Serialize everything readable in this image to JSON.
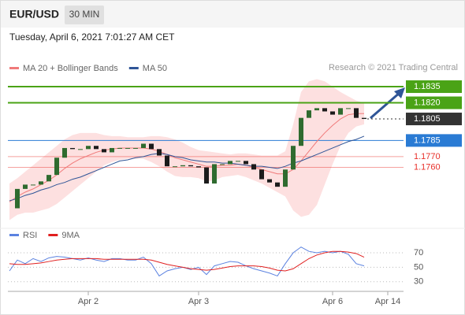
{
  "header": {
    "symbol": "EUR/USD",
    "interval": "30 MIN",
    "timestamp": "Tuesday, April 6, 2021 7:01:27 AM CET",
    "source": "Research © 2021 Trading Central"
  },
  "chart_data": [
    {
      "type": "candlestick",
      "ylim": [
        1.1707,
        1.1846
      ],
      "price": {
        "up_color": "#2f6b2f",
        "down_color": "#1b1b1b",
        "values": [
          1.1722,
          1.174,
          1.1744,
          1.1744,
          1.1747,
          1.1753,
          1.1769,
          1.1778,
          1.1777,
          1.1777,
          1.178,
          1.1777,
          1.1774,
          1.1778,
          1.1778,
          1.1778,
          1.1778,
          1.1782,
          1.1777,
          1.1771,
          1.1761,
          1.1761,
          1.1762,
          1.1761,
          1.176,
          1.1745,
          1.1763,
          1.1763,
          1.1766,
          1.1766,
          1.1763,
          1.1758,
          1.1749,
          1.1746,
          1.1742,
          1.1758,
          1.178,
          1.1806,
          1.1813,
          1.1815,
          1.1812,
          1.1809,
          1.1815,
          1.1815,
          1.1806,
          1.1805,
          null,
          null,
          null,
          null
        ]
      },
      "series": [
        {
          "name": "MA 20 + Bollinger Bands",
          "color": "#f07a7a",
          "band_color": "#fde0e0",
          "values": [
            1.1728,
            1.1733,
            1.1737,
            1.174,
            1.1744,
            1.1748,
            1.1753,
            1.1759,
            1.1764,
            1.1768,
            1.1771,
            1.1774,
            1.1776,
            1.1777,
            1.1778,
            1.1778,
            1.1778,
            1.1778,
            1.1777,
            1.1775,
            1.1772,
            1.1769,
            1.1767,
            1.1765,
            1.1763,
            1.1761,
            1.1761,
            1.1762,
            1.1762,
            1.1763,
            1.1762,
            1.176,
            1.1758,
            1.1756,
            1.1754,
            1.1754,
            1.1758,
            1.1766,
            1.1775,
            1.1784,
            1.1792,
            1.1799,
            1.1805,
            1.1809,
            1.181,
            1.181,
            null,
            null,
            null,
            null
          ],
          "upper": [
            1.1745,
            1.175,
            1.1756,
            1.1762,
            1.1768,
            1.1774,
            1.178,
            1.1786,
            1.179,
            1.1792,
            1.1792,
            1.1792,
            1.179,
            1.1789,
            1.1789,
            1.1788,
            1.1788,
            1.1788,
            1.1789,
            1.1789,
            1.1788,
            1.1786,
            1.1783,
            1.1779,
            1.1776,
            1.1775,
            1.1774,
            1.1773,
            1.1772,
            1.1773,
            1.1773,
            1.1772,
            1.1771,
            1.1771,
            1.1771,
            1.1775,
            1.18,
            1.183,
            1.184,
            1.1842,
            1.184,
            1.1835,
            1.183,
            1.1826,
            1.1822,
            1.182,
            null,
            null,
            null,
            null
          ],
          "lower": [
            1.1711,
            1.1716,
            1.1718,
            1.1718,
            1.172,
            1.1722,
            1.1726,
            1.1732,
            1.1738,
            1.1744,
            1.175,
            1.1756,
            1.1762,
            1.1765,
            1.1767,
            1.1768,
            1.1768,
            1.1768,
            1.1765,
            1.1761,
            1.1756,
            1.1752,
            1.1751,
            1.1751,
            1.175,
            1.1747,
            1.1748,
            1.1751,
            1.1752,
            1.1753,
            1.1751,
            1.1748,
            1.1745,
            1.1741,
            1.1737,
            1.1733,
            1.172,
            1.1714,
            1.1716,
            1.1725,
            1.1744,
            1.1763,
            1.178,
            1.1792,
            1.1798,
            1.18,
            null,
            null,
            null,
            null
          ]
        },
        {
          "name": "MA 50",
          "color": "#2f5597",
          "values": [
            1.1729,
            1.1731,
            1.1734,
            1.1736,
            1.1739,
            1.1741,
            1.1744,
            1.1746,
            1.1749,
            1.1751,
            1.1754,
            1.1757,
            1.176,
            1.1763,
            1.1766,
            1.1767,
            1.1769,
            1.177,
            1.1772,
            1.1773,
            1.1772,
            1.177,
            1.1769,
            1.1767,
            1.1766,
            1.1765,
            1.1765,
            1.1764,
            1.1764,
            1.1763,
            1.1762,
            1.1761,
            1.1761,
            1.176,
            1.1759,
            1.1761,
            1.1764,
            1.1766,
            1.1769,
            1.1772,
            1.1775,
            1.1778,
            1.1781,
            1.1784,
            1.1786,
            1.1789,
            null,
            null,
            null,
            null
          ]
        }
      ],
      "levels": [
        {
          "value": 1.1835,
          "label": "1.1835",
          "color": "#4aa316",
          "label_box": true,
          "dashed": false
        },
        {
          "value": 1.182,
          "label": "1.1820",
          "color": "#4aa316",
          "label_box": true,
          "dashed": false
        },
        {
          "value": 1.1805,
          "label": "1.1805",
          "color": "#333333",
          "label_box": true,
          "dashed": true
        },
        {
          "value": 1.1785,
          "label": "1.1785",
          "color": "#2a7bd4",
          "label_box": true,
          "dashed": false
        },
        {
          "value": 1.177,
          "label": "1.1770",
          "color": "#e8302a",
          "label_box": false,
          "dashed": false
        },
        {
          "value": 1.176,
          "label": "1.1760",
          "color": "#e8302a",
          "label_box": false,
          "dashed": false
        }
      ]
    },
    {
      "type": "line",
      "ylim": [
        20,
        82
      ],
      "yticks": [
        30,
        50,
        70
      ],
      "grid": true,
      "categories": [
        null,
        null,
        null,
        null,
        null,
        null,
        null,
        null,
        null,
        null,
        "Apr 2",
        null,
        null,
        null,
        null,
        null,
        null,
        null,
        null,
        null,
        null,
        null,
        null,
        null,
        "Apr 3",
        null,
        null,
        null,
        null,
        null,
        null,
        null,
        null,
        null,
        null,
        null,
        null,
        null,
        null,
        null,
        null,
        "Apr 6",
        null,
        null,
        null,
        null,
        null,
        null,
        "Apr 14",
        null
      ],
      "series": [
        {
          "name": "RSI",
          "color": "#5b82e0",
          "values": [
            45,
            60,
            55,
            62,
            58,
            63,
            65,
            64,
            62,
            60,
            63,
            60,
            58,
            62,
            62,
            60,
            60,
            64,
            55,
            38,
            45,
            48,
            50,
            47,
            50,
            40,
            52,
            55,
            58,
            57,
            52,
            48,
            45,
            42,
            38,
            55,
            70,
            78,
            72,
            70,
            72,
            70,
            72,
            68,
            55,
            52,
            null,
            null,
            null,
            null
          ]
        },
        {
          "name": "9MA",
          "color": "#e02020",
          "values": [
            55,
            54,
            54,
            55,
            56,
            58,
            60,
            61,
            62,
            62,
            62,
            62,
            61,
            61,
            61,
            61,
            61,
            61,
            60,
            57,
            54,
            52,
            50,
            48,
            47,
            46,
            47,
            49,
            51,
            52,
            52,
            52,
            51,
            49,
            46,
            45,
            48,
            55,
            62,
            67,
            70,
            72,
            72,
            71,
            69,
            64,
            null,
            null,
            null,
            null
          ]
        }
      ]
    }
  ]
}
